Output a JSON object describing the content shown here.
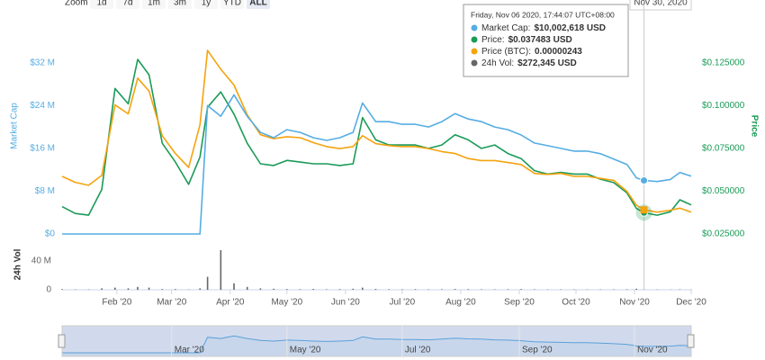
{
  "chart_data": [
    {
      "type": "line",
      "ylabel": "Market Cap",
      "y2label": "Price",
      "x": [
        "2020-01-03",
        "2020-01-10",
        "2020-01-17",
        "2020-01-24",
        "2020-01-31",
        "2020-02-07",
        "2020-02-12",
        "2020-02-18",
        "2020-02-25",
        "2020-03-03",
        "2020-03-10",
        "2020-03-16",
        "2020-03-20",
        "2020-03-27",
        "2020-04-03",
        "2020-04-10",
        "2020-04-17",
        "2020-04-24",
        "2020-05-01",
        "2020-05-08",
        "2020-05-15",
        "2020-05-22",
        "2020-05-29",
        "2020-06-05",
        "2020-06-10",
        "2020-06-17",
        "2020-06-24",
        "2020-07-01",
        "2020-07-08",
        "2020-07-15",
        "2020-07-22",
        "2020-07-29",
        "2020-08-05",
        "2020-08-12",
        "2020-08-19",
        "2020-08-26",
        "2020-09-02",
        "2020-09-09",
        "2020-09-16",
        "2020-09-23",
        "2020-09-30",
        "2020-10-07",
        "2020-10-14",
        "2020-10-21",
        "2020-10-28",
        "2020-11-02",
        "2020-11-06",
        "2020-11-13",
        "2020-11-20",
        "2020-11-25",
        "2020-12-01"
      ],
      "xlim": [
        "2020-01-03",
        "2020-12-01"
      ],
      "xticks": [
        {
          "value": "2020-02-01",
          "label": "Feb '20"
        },
        {
          "value": "2020-03-01",
          "label": "Mar '20"
        },
        {
          "value": "2020-04-01",
          "label": "Apr '20"
        },
        {
          "value": "2020-05-01",
          "label": "May '20"
        },
        {
          "value": "2020-06-01",
          "label": "Jun '20"
        },
        {
          "value": "2020-07-01",
          "label": "Jul '20"
        },
        {
          "value": "2020-08-01",
          "label": "Aug '20"
        },
        {
          "value": "2020-09-01",
          "label": "Sep '20"
        },
        {
          "value": "2020-10-01",
          "label": "Oct '20"
        },
        {
          "value": "2020-11-01",
          "label": "Nov '20"
        },
        {
          "value": "2020-12-01",
          "label": "Dec '20"
        }
      ],
      "ylim": [
        0,
        36000000
      ],
      "yticks": [
        {
          "value": 0,
          "label": "$0"
        },
        {
          "value": 8000000,
          "label": "$8 M"
        },
        {
          "value": 16000000,
          "label": "$16 M"
        },
        {
          "value": 24000000,
          "label": "$24 M"
        },
        {
          "value": 32000000,
          "label": "$32 M"
        }
      ],
      "y2lim": [
        0.025,
        0.1375
      ],
      "y2ticks": [
        {
          "value": 0.025,
          "label": "$0.025000"
        },
        {
          "value": 0.05,
          "label": "$0.050000"
        },
        {
          "value": 0.075,
          "label": "$0.075000"
        },
        {
          "value": 0.1,
          "label": "$0.100000"
        },
        {
          "value": 0.125,
          "label": "$0.125000"
        }
      ],
      "y3lim": [
        0,
        1.94e-05
      ],
      "series": [
        {
          "color": "#1a9b57",
          "axis": "y2",
          "values": [
            0.041,
            0.037,
            0.036,
            0.051,
            0.11,
            0.101,
            0.127,
            0.118,
            0.078,
            0.067,
            0.054,
            0.07,
            0.099,
            0.108,
            0.095,
            0.078,
            0.066,
            0.065,
            0.068,
            0.067,
            0.066,
            0.066,
            0.065,
            0.066,
            0.093,
            0.08,
            0.077,
            0.077,
            0.077,
            0.075,
            0.077,
            0.083,
            0.08,
            0.075,
            0.077,
            0.072,
            0.069,
            0.062,
            0.06,
            0.061,
            0.06,
            0.06,
            0.057,
            0.055,
            0.049,
            0.04,
            0.037483,
            0.036,
            0.038,
            0.045,
            0.042
          ]
        },
        {
          "color": "#f5a30f",
          "axis": "y3",
          "values": [
            5.8e-06,
            5.2e-06,
            4.9e-06,
            5.9e-06,
            1.3e-05,
            1.21e-05,
            1.57e-05,
            1.44e-05,
            9.9e-06,
            8.1e-06,
            6.7e-06,
            1.1e-05,
            1.85e-05,
            1.66e-05,
            1.5e-05,
            1.2e-05,
            1e-05,
            9.6e-06,
            9.8e-06,
            9.7e-06,
            9.2e-06,
            8.8e-06,
            8.6e-06,
            8.8e-06,
            9.9e-06,
            9.1e-06,
            8.9e-06,
            8.8e-06,
            8.8e-06,
            8.6e-06,
            8.3e-06,
            8.1e-06,
            7.6e-06,
            7.4e-06,
            7.4e-06,
            7.2e-06,
            7e-06,
            6.1e-06,
            6e-06,
            6.1e-06,
            5.8e-06,
            5.8e-06,
            5.6e-06,
            5.4e-06,
            4.3e-06,
            2.9e-06,
            2.43e-06,
            2.2e-06,
            2.4e-06,
            2.6e-06,
            2.2e-06
          ]
        },
        {
          "color": "#55ade3",
          "axis": "y",
          "values": [
            0,
            0,
            0,
            0,
            0,
            0,
            0,
            0,
            0,
            0,
            0,
            0,
            24000000,
            22000000,
            26000000,
            22000000,
            19000000,
            18000000,
            19500000,
            19000000,
            18000000,
            17500000,
            18000000,
            19000000,
            24500000,
            21000000,
            21000000,
            20500000,
            20500000,
            20000000,
            21000000,
            22500000,
            21500000,
            21000000,
            20000000,
            19500000,
            18500000,
            17000000,
            16500000,
            16000000,
            15500000,
            15500000,
            15000000,
            14000000,
            13000000,
            10500000,
            10002618,
            9800000,
            10200000,
            11500000,
            10800000
          ]
        }
      ],
      "highlight_index": 46,
      "tooltip": {
        "title": "Friday, Nov 06 2020, 17:44:07 UTC+08:00",
        "items": [
          {
            "label": "Market Cap:",
            "value": "$10,002,618 USD",
            "series": 2
          },
          {
            "label": "Price:",
            "value": "$0.037483 USD",
            "series": 0
          },
          {
            "label": "Price (BTC):",
            "value": "0.00000243",
            "series": 1
          },
          {
            "label": "24h Vol:",
            "value": "$272,345 USD",
            "color": "#666666"
          }
        ]
      },
      "range_selector": {
        "label": "Zoom",
        "buttons": [
          "1d",
          "7d",
          "1m",
          "3m",
          "1y",
          "YTD",
          "ALL"
        ],
        "selected": 6,
        "to": "Nov 30, 2020"
      },
      "navigator": {
        "xticks": [
          {
            "value": "2020-03-01",
            "label": "Mar '20"
          },
          {
            "value": "2020-05-01",
            "label": "May '20"
          },
          {
            "value": "2020-07-01",
            "label": "Jul '20"
          },
          {
            "value": "2020-09-01",
            "label": "Sep '20"
          },
          {
            "value": "2020-11-01",
            "label": "Nov '20"
          }
        ]
      }
    },
    {
      "type": "bar",
      "ylabel": "24h Vol",
      "color": "#666666",
      "x": [
        "2020-01-03",
        "2020-01-10",
        "2020-01-17",
        "2020-01-24",
        "2020-01-31",
        "2020-02-07",
        "2020-02-12",
        "2020-02-18",
        "2020-02-25",
        "2020-03-03",
        "2020-03-10",
        "2020-03-16",
        "2020-03-20",
        "2020-03-27",
        "2020-04-03",
        "2020-04-10",
        "2020-04-17",
        "2020-04-24",
        "2020-05-01",
        "2020-05-08",
        "2020-05-15",
        "2020-05-22",
        "2020-05-29",
        "2020-06-05",
        "2020-06-10",
        "2020-06-17",
        "2020-06-24",
        "2020-07-01",
        "2020-07-08",
        "2020-07-15",
        "2020-07-22",
        "2020-07-29",
        "2020-08-05",
        "2020-08-12",
        "2020-08-19",
        "2020-08-26",
        "2020-09-02",
        "2020-09-09",
        "2020-09-16",
        "2020-09-23",
        "2020-09-30",
        "2020-10-07",
        "2020-10-14",
        "2020-10-21",
        "2020-10-28",
        "2020-11-02",
        "2020-11-06",
        "2020-11-13",
        "2020-11-20",
        "2020-11-25",
        "2020-12-01"
      ],
      "values": [
        1000000,
        500000,
        500000,
        2000000,
        3000000,
        2000000,
        4000000,
        3000000,
        1000000,
        1000000,
        500000,
        2000000,
        18000000,
        55000000,
        9000000,
        4000000,
        2000000,
        1500000,
        1000000,
        800000,
        1200000,
        700000,
        900000,
        1500000,
        3000000,
        1200000,
        800000,
        700000,
        900000,
        600000,
        800000,
        1100000,
        900000,
        700000,
        600000,
        800000,
        1000000,
        700000,
        500000,
        600000,
        500000,
        400000,
        500000,
        600000,
        700000,
        1500000,
        272345,
        400000,
        300000,
        600000,
        400000
      ],
      "ylim": [
        0,
        65000000
      ],
      "yticks": [
        0,
        {
          "value": 40000000,
          "label": "40 M"
        }
      ]
    }
  ]
}
